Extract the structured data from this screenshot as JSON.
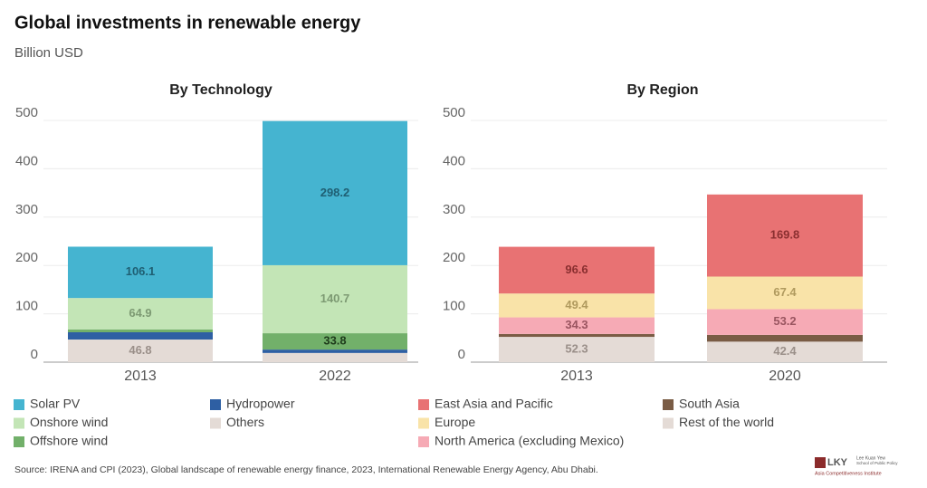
{
  "title": "Global investments in renewable energy",
  "subtitle": "Billion USD",
  "source": "Source: IRENA and CPI (2023), Global landscape of renewable energy finance, 2023, International Renewable Energy Agency, Abu Dhabi.",
  "logo": {
    "mark": "LKY",
    "line1": "Lee Kuan Yew",
    "line2": "School of Public Policy",
    "line3": "Asia Competitiveness Institute"
  },
  "chart_data": [
    {
      "type": "bar",
      "stacked": true,
      "title": "By Technology",
      "categories": [
        "2013",
        "2022"
      ],
      "ylim": [
        0,
        500
      ],
      "yticks": [
        0,
        100,
        200,
        300,
        400,
        500
      ],
      "grid": true,
      "series": [
        {
          "name": "Solar PV",
          "color": "#45b4d0",
          "label_color": "#1f5f73",
          "values": [
            106.1,
            298.2
          ]
        },
        {
          "name": "Onshore wind",
          "color": "#c3e5b6",
          "label_color": "#7d9a73",
          "values": [
            64.9,
            140.7
          ]
        },
        {
          "name": "Offshore wind",
          "color": "#72b06a",
          "label_color": "#1e3b1b",
          "values": [
            6,
            33.8
          ],
          "value_labels": [
            null,
            "33.8"
          ]
        },
        {
          "name": "Hydropower",
          "color": "#2e5fa3",
          "label_color": "#ffffff",
          "values": [
            15,
            7
          ],
          "value_labels": [
            null,
            null
          ]
        },
        {
          "name": "Others",
          "color": "#e4dbd6",
          "label_color": "#9a8f89",
          "values": [
            46.8,
            19
          ],
          "value_labels": [
            "46.8",
            null
          ]
        }
      ]
    },
    {
      "type": "bar",
      "stacked": true,
      "title": "By Region",
      "categories": [
        "2013",
        "2020"
      ],
      "ylim": [
        0,
        500
      ],
      "yticks": [
        0,
        100,
        200,
        300,
        400,
        500
      ],
      "grid": true,
      "series": [
        {
          "name": "East Asia and Pacific",
          "color": "#e87273",
          "label_color": "#8a2f30",
          "values": [
            96.6,
            169.8
          ]
        },
        {
          "name": "Europe",
          "color": "#f9e3a8",
          "label_color": "#b09a5e",
          "values": [
            49.4,
            67.4
          ]
        },
        {
          "name": "North America (excluding Mexico)",
          "color": "#f6aab5",
          "label_color": "#9a5560",
          "values": [
            34.3,
            53.2
          ]
        },
        {
          "name": "South Asia",
          "color": "#7a5c45",
          "label_color": "#ffffff",
          "values": [
            6,
            14
          ],
          "value_labels": [
            null,
            null
          ]
        },
        {
          "name": "Rest of the world",
          "color": "#e4dbd6",
          "label_color": "#9a8f89",
          "values": [
            52.3,
            42.4
          ]
        }
      ]
    }
  ]
}
